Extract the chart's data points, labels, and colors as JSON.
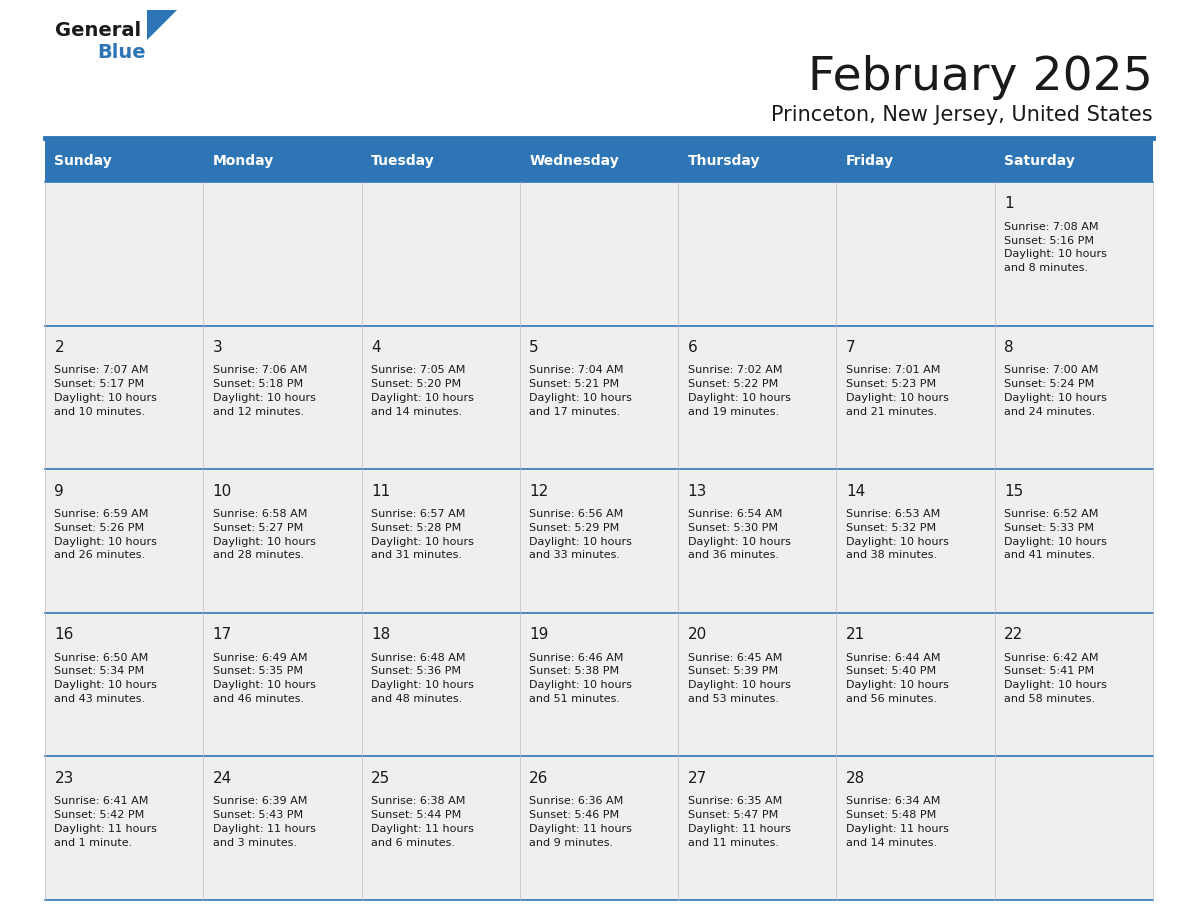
{
  "title": "February 2025",
  "subtitle": "Princeton, New Jersey, United States",
  "header_bg": "#2E75B6",
  "header_text": "#FFFFFF",
  "cell_bg": "#EFEFEF",
  "text_color": "#1a1a1a",
  "line_color": "#2E75B6",
  "day_headers": [
    "Sunday",
    "Monday",
    "Tuesday",
    "Wednesday",
    "Thursday",
    "Friday",
    "Saturday"
  ],
  "days": [
    {
      "day": 1,
      "col": 6,
      "row": 0,
      "sunrise": "7:08 AM",
      "sunset": "5:16 PM",
      "daylight_line1": "10 hours",
      "daylight_line2": "and 8 minutes."
    },
    {
      "day": 2,
      "col": 0,
      "row": 1,
      "sunrise": "7:07 AM",
      "sunset": "5:17 PM",
      "daylight_line1": "10 hours",
      "daylight_line2": "and 10 minutes."
    },
    {
      "day": 3,
      "col": 1,
      "row": 1,
      "sunrise": "7:06 AM",
      "sunset": "5:18 PM",
      "daylight_line1": "10 hours",
      "daylight_line2": "and 12 minutes."
    },
    {
      "day": 4,
      "col": 2,
      "row": 1,
      "sunrise": "7:05 AM",
      "sunset": "5:20 PM",
      "daylight_line1": "10 hours",
      "daylight_line2": "and 14 minutes."
    },
    {
      "day": 5,
      "col": 3,
      "row": 1,
      "sunrise": "7:04 AM",
      "sunset": "5:21 PM",
      "daylight_line1": "10 hours",
      "daylight_line2": "and 17 minutes."
    },
    {
      "day": 6,
      "col": 4,
      "row": 1,
      "sunrise": "7:02 AM",
      "sunset": "5:22 PM",
      "daylight_line1": "10 hours",
      "daylight_line2": "and 19 minutes."
    },
    {
      "day": 7,
      "col": 5,
      "row": 1,
      "sunrise": "7:01 AM",
      "sunset": "5:23 PM",
      "daylight_line1": "10 hours",
      "daylight_line2": "and 21 minutes."
    },
    {
      "day": 8,
      "col": 6,
      "row": 1,
      "sunrise": "7:00 AM",
      "sunset": "5:24 PM",
      "daylight_line1": "10 hours",
      "daylight_line2": "and 24 minutes."
    },
    {
      "day": 9,
      "col": 0,
      "row": 2,
      "sunrise": "6:59 AM",
      "sunset": "5:26 PM",
      "daylight_line1": "10 hours",
      "daylight_line2": "and 26 minutes."
    },
    {
      "day": 10,
      "col": 1,
      "row": 2,
      "sunrise": "6:58 AM",
      "sunset": "5:27 PM",
      "daylight_line1": "10 hours",
      "daylight_line2": "and 28 minutes."
    },
    {
      "day": 11,
      "col": 2,
      "row": 2,
      "sunrise": "6:57 AM",
      "sunset": "5:28 PM",
      "daylight_line1": "10 hours",
      "daylight_line2": "and 31 minutes."
    },
    {
      "day": 12,
      "col": 3,
      "row": 2,
      "sunrise": "6:56 AM",
      "sunset": "5:29 PM",
      "daylight_line1": "10 hours",
      "daylight_line2": "and 33 minutes."
    },
    {
      "day": 13,
      "col": 4,
      "row": 2,
      "sunrise": "6:54 AM",
      "sunset": "5:30 PM",
      "daylight_line1": "10 hours",
      "daylight_line2": "and 36 minutes."
    },
    {
      "day": 14,
      "col": 5,
      "row": 2,
      "sunrise": "6:53 AM",
      "sunset": "5:32 PM",
      "daylight_line1": "10 hours",
      "daylight_line2": "and 38 minutes."
    },
    {
      "day": 15,
      "col": 6,
      "row": 2,
      "sunrise": "6:52 AM",
      "sunset": "5:33 PM",
      "daylight_line1": "10 hours",
      "daylight_line2": "and 41 minutes."
    },
    {
      "day": 16,
      "col": 0,
      "row": 3,
      "sunrise": "6:50 AM",
      "sunset": "5:34 PM",
      "daylight_line1": "10 hours",
      "daylight_line2": "and 43 minutes."
    },
    {
      "day": 17,
      "col": 1,
      "row": 3,
      "sunrise": "6:49 AM",
      "sunset": "5:35 PM",
      "daylight_line1": "10 hours",
      "daylight_line2": "and 46 minutes."
    },
    {
      "day": 18,
      "col": 2,
      "row": 3,
      "sunrise": "6:48 AM",
      "sunset": "5:36 PM",
      "daylight_line1": "10 hours",
      "daylight_line2": "and 48 minutes."
    },
    {
      "day": 19,
      "col": 3,
      "row": 3,
      "sunrise": "6:46 AM",
      "sunset": "5:38 PM",
      "daylight_line1": "10 hours",
      "daylight_line2": "and 51 minutes."
    },
    {
      "day": 20,
      "col": 4,
      "row": 3,
      "sunrise": "6:45 AM",
      "sunset": "5:39 PM",
      "daylight_line1": "10 hours",
      "daylight_line2": "and 53 minutes."
    },
    {
      "day": 21,
      "col": 5,
      "row": 3,
      "sunrise": "6:44 AM",
      "sunset": "5:40 PM",
      "daylight_line1": "10 hours",
      "daylight_line2": "and 56 minutes."
    },
    {
      "day": 22,
      "col": 6,
      "row": 3,
      "sunrise": "6:42 AM",
      "sunset": "5:41 PM",
      "daylight_line1": "10 hours",
      "daylight_line2": "and 58 minutes."
    },
    {
      "day": 23,
      "col": 0,
      "row": 4,
      "sunrise": "6:41 AM",
      "sunset": "5:42 PM",
      "daylight_line1": "11 hours",
      "daylight_line2": "and 1 minute."
    },
    {
      "day": 24,
      "col": 1,
      "row": 4,
      "sunrise": "6:39 AM",
      "sunset": "5:43 PM",
      "daylight_line1": "11 hours",
      "daylight_line2": "and 3 minutes."
    },
    {
      "day": 25,
      "col": 2,
      "row": 4,
      "sunrise": "6:38 AM",
      "sunset": "5:44 PM",
      "daylight_line1": "11 hours",
      "daylight_line2": "and 6 minutes."
    },
    {
      "day": 26,
      "col": 3,
      "row": 4,
      "sunrise": "6:36 AM",
      "sunset": "5:46 PM",
      "daylight_line1": "11 hours",
      "daylight_line2": "and 9 minutes."
    },
    {
      "day": 27,
      "col": 4,
      "row": 4,
      "sunrise": "6:35 AM",
      "sunset": "5:47 PM",
      "daylight_line1": "11 hours",
      "daylight_line2": "and 11 minutes."
    },
    {
      "day": 28,
      "col": 5,
      "row": 4,
      "sunrise": "6:34 AM",
      "sunset": "5:48 PM",
      "daylight_line1": "11 hours",
      "daylight_line2": "and 14 minutes."
    }
  ],
  "fig_width": 11.88,
  "fig_height": 9.18,
  "dpi": 100
}
